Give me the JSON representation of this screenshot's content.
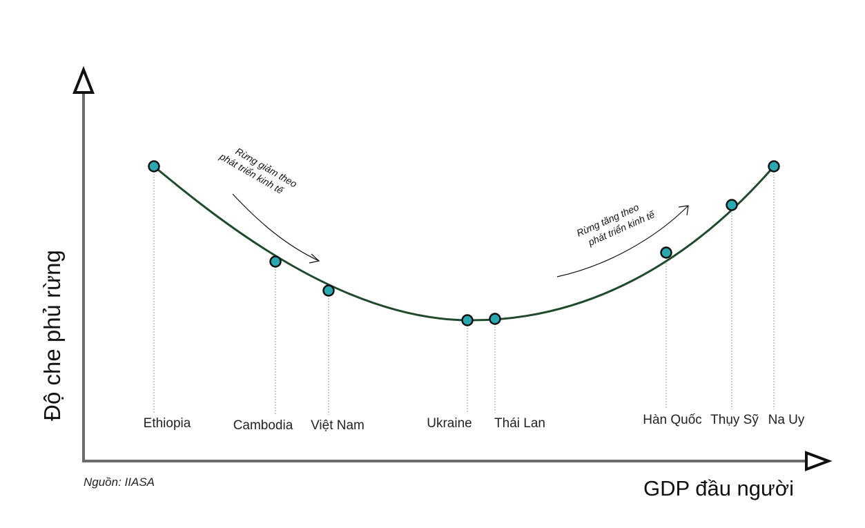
{
  "y_axis_label": "Độ che phủ rừng",
  "x_axis_label": "GDP đầu người",
  "source": "Nguồn: IIASA",
  "annotations": {
    "decrease": [
      "Rừng giảm theo",
      "phát triển kinh tế"
    ],
    "increase": [
      "Rừng tăng theo",
      "phát triển kinh tế"
    ]
  },
  "countries": [
    {
      "id": "ethiopia",
      "label": "Ethiopia"
    },
    {
      "id": "cambodia",
      "label": "Cambodia"
    },
    {
      "id": "viet-nam",
      "label": "Việt Nam"
    },
    {
      "id": "ukraine",
      "label": "Ukraine"
    },
    {
      "id": "thai-lan",
      "label": "Thái Lan"
    },
    {
      "id": "han-quoc",
      "label": "Hàn Quốc"
    },
    {
      "id": "thuy-sy",
      "label": "Thụy Sỹ"
    },
    {
      "id": "na-uy",
      "label": "Na Uy"
    }
  ],
  "colors": {
    "curve": "#1f4a2c",
    "point_fill": "#2aa8b0",
    "point_stroke": "#111111",
    "axis": "#6b6b6b",
    "arrowhead": "#111111"
  }
}
